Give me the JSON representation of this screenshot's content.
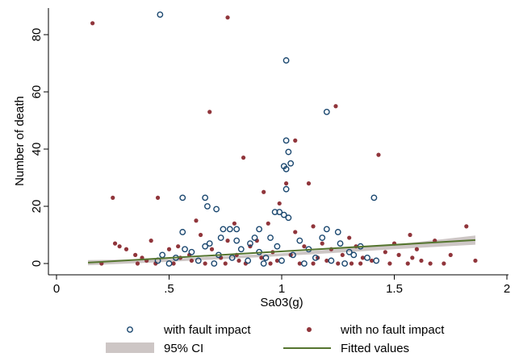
{
  "chart_data": {
    "type": "scatter",
    "xlabel": "Sa03(g)",
    "ylabel": "Number of death",
    "xlim": [
      0,
      2
    ],
    "ylim": [
      -4,
      90
    ],
    "x_ticks": [
      {
        "value": 0,
        "label": "0"
      },
      {
        "value": 0.5,
        "label": ".5"
      },
      {
        "value": 1,
        "label": "1"
      },
      {
        "value": 1.5,
        "label": "1.5"
      },
      {
        "value": 2,
        "label": "2"
      }
    ],
    "y_ticks": [
      {
        "value": 0,
        "label": "0"
      },
      {
        "value": 20,
        "label": "20"
      },
      {
        "value": 40,
        "label": "40"
      },
      {
        "value": 60,
        "label": "60"
      },
      {
        "value": 80,
        "label": "80"
      }
    ],
    "colors": {
      "fault": "#1a476f",
      "no_fault": "#90353b",
      "ci": "#cdc6c5",
      "fit": "#55752f"
    },
    "series": [
      {
        "name": "with fault impact",
        "marker": "hollow-circle",
        "points": [
          [
            0.46,
            87
          ],
          [
            1.02,
            71
          ],
          [
            1.2,
            53
          ],
          [
            1.02,
            43
          ],
          [
            1.03,
            39
          ],
          [
            1.04,
            35
          ],
          [
            1.01,
            34
          ],
          [
            1.02,
            33
          ],
          [
            1.02,
            26
          ],
          [
            0.56,
            23
          ],
          [
            0.66,
            23
          ],
          [
            1.41,
            23
          ],
          [
            0.67,
            20
          ],
          [
            0.71,
            19
          ],
          [
            0.97,
            18
          ],
          [
            0.99,
            18
          ],
          [
            1.01,
            17
          ],
          [
            1.03,
            16
          ],
          [
            0.74,
            12
          ],
          [
            0.77,
            12
          ],
          [
            0.8,
            12
          ],
          [
            0.9,
            12
          ],
          [
            1.2,
            12
          ],
          [
            0.56,
            11
          ],
          [
            1.25,
            11
          ],
          [
            0.73,
            9
          ],
          [
            0.88,
            9
          ],
          [
            0.95,
            9
          ],
          [
            1.18,
            9
          ],
          [
            0.8,
            8
          ],
          [
            1.08,
            8
          ],
          [
            0.68,
            7
          ],
          [
            0.86,
            7
          ],
          [
            1.26,
            7
          ],
          [
            0.66,
            6
          ],
          [
            0.98,
            6
          ],
          [
            1.35,
            6
          ],
          [
            0.57,
            5
          ],
          [
            0.82,
            5
          ],
          [
            1.12,
            5
          ],
          [
            0.6,
            4
          ],
          [
            0.9,
            4
          ],
          [
            1.3,
            4
          ],
          [
            0.47,
            3
          ],
          [
            0.72,
            3
          ],
          [
            1.05,
            3
          ],
          [
            1.32,
            3
          ],
          [
            0.53,
            2
          ],
          [
            0.78,
            2
          ],
          [
            0.93,
            2
          ],
          [
            1.15,
            2
          ],
          [
            1.38,
            2
          ],
          [
            0.45,
            1
          ],
          [
            0.63,
            1
          ],
          [
            0.85,
            1
          ],
          [
            1.0,
            1
          ],
          [
            1.22,
            1
          ],
          [
            1.42,
            1
          ],
          [
            0.5,
            0
          ],
          [
            0.7,
            0
          ],
          [
            0.92,
            0
          ],
          [
            1.1,
            0
          ],
          [
            1.28,
            0
          ]
        ]
      },
      {
        "name": "with no fault impact",
        "marker": "filled-circle",
        "points": [
          [
            0.16,
            84
          ],
          [
            0.76,
            86
          ],
          [
            1.24,
            55
          ],
          [
            0.68,
            53
          ],
          [
            1.06,
            43
          ],
          [
            1.43,
            38
          ],
          [
            0.83,
            37
          ],
          [
            1.02,
            28
          ],
          [
            1.12,
            28
          ],
          [
            0.25,
            23
          ],
          [
            0.45,
            23
          ],
          [
            0.92,
            25
          ],
          [
            0.99,
            21
          ],
          [
            0.62,
            15
          ],
          [
            0.79,
            14
          ],
          [
            0.94,
            14
          ],
          [
            1.14,
            13
          ],
          [
            1.82,
            13
          ],
          [
            0.64,
            10
          ],
          [
            1.06,
            11
          ],
          [
            1.3,
            9
          ],
          [
            1.57,
            10
          ],
          [
            0.26,
            7
          ],
          [
            0.42,
            8
          ],
          [
            0.76,
            8
          ],
          [
            0.89,
            8
          ],
          [
            1.18,
            7
          ],
          [
            1.5,
            7
          ],
          [
            1.68,
            8
          ],
          [
            0.28,
            6
          ],
          [
            0.54,
            6
          ],
          [
            0.86,
            6
          ],
          [
            1.1,
            6
          ],
          [
            1.33,
            6
          ],
          [
            1.6,
            5
          ],
          [
            0.31,
            5
          ],
          [
            0.5,
            5
          ],
          [
            0.69,
            5
          ],
          [
            0.96,
            4
          ],
          [
            1.22,
            5
          ],
          [
            1.46,
            4
          ],
          [
            0.35,
            3
          ],
          [
            0.59,
            3
          ],
          [
            0.8,
            3
          ],
          [
            1.04,
            3
          ],
          [
            1.27,
            3
          ],
          [
            1.52,
            3
          ],
          [
            1.75,
            3
          ],
          [
            0.38,
            2
          ],
          [
            0.55,
            2
          ],
          [
            0.73,
            2
          ],
          [
            0.91,
            2
          ],
          [
            1.16,
            2
          ],
          [
            1.36,
            2
          ],
          [
            1.58,
            2
          ],
          [
            1.86,
            1
          ],
          [
            0.4,
            1
          ],
          [
            0.6,
            1
          ],
          [
            0.81,
            1
          ],
          [
            0.98,
            1
          ],
          [
            1.2,
            1
          ],
          [
            1.4,
            1
          ],
          [
            1.62,
            1
          ],
          [
            0.2,
            0
          ],
          [
            0.44,
            0
          ],
          [
            0.66,
            0
          ],
          [
            0.84,
            0
          ],
          [
            1.08,
            0
          ],
          [
            1.31,
            0
          ],
          [
            1.48,
            0
          ],
          [
            1.66,
            0
          ],
          [
            1.72,
            0
          ],
          [
            0.52,
            0
          ],
          [
            0.75,
            0
          ],
          [
            0.95,
            0
          ],
          [
            1.14,
            0
          ],
          [
            1.35,
            0
          ],
          [
            1.56,
            0
          ],
          [
            0.36,
            0
          ],
          [
            1.25,
            0
          ]
        ]
      }
    ],
    "ci_band": {
      "name": "95% CI",
      "x": [
        0.14,
        0.5,
        1.0,
        1.5,
        1.86
      ],
      "lower": [
        -0.6,
        0.6,
        2.6,
        5.0,
        6.6
      ],
      "upper": [
        1.2,
        1.6,
        3.6,
        6.6,
        9.8
      ]
    },
    "fit_line": {
      "name": "Fitted values",
      "x": [
        0.14,
        1.86
      ],
      "y": [
        0.3,
        8.2
      ]
    },
    "legend": {
      "placement": "bottom",
      "entries": [
        {
          "label": "with fault impact",
          "kind": "hollow-circle"
        },
        {
          "label": "with no fault impact",
          "kind": "filled-circle"
        },
        {
          "label": "95% CI",
          "kind": "band"
        },
        {
          "label": "Fitted values",
          "kind": "line"
        }
      ]
    }
  }
}
